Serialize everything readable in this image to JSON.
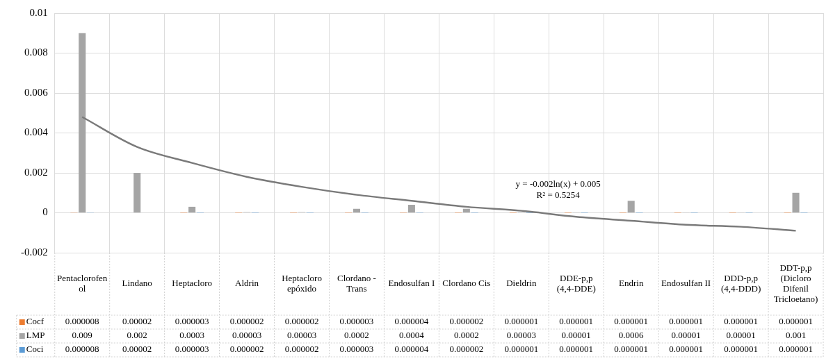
{
  "chart_data": {
    "type": "bar",
    "categories": [
      "Pentaclorofenol",
      "Lindano",
      "Heptacloro",
      "Aldrin",
      "Heptacloro epóxido",
      "Clordano - Trans",
      "Endosulfan I",
      "Clordano Cis",
      "Dieldrin",
      "DDE-p,p (4,4-DDE)",
      "Endrin",
      "Endosulfan II",
      "DDD-p,p (4,4-DDD)",
      "DDT-p,p (Dicloro Difenil Tricloetano)"
    ],
    "series": [
      {
        "name": "Cocf",
        "color": "#ed7d31",
        "values": [
          8e-06,
          2e-05,
          3e-06,
          2e-06,
          2e-06,
          3e-06,
          4e-06,
          2e-06,
          1e-06,
          1e-06,
          1e-06,
          1e-06,
          1e-06,
          1e-06
        ],
        "value_labels": [
          "0.000008",
          "0.00002",
          "0.000003",
          "0.000002",
          "0.000002",
          "0.000003",
          "0.000004",
          "0.000002",
          "0.000001",
          "0.000001",
          "0.000001",
          "0.000001",
          "0.000001",
          "0.000001"
        ]
      },
      {
        "name": "LMP",
        "color": "#a5a5a5",
        "values": [
          0.009,
          0.002,
          0.0003,
          3e-05,
          3e-05,
          0.0002,
          0.0004,
          0.0002,
          3e-05,
          1e-05,
          0.0006,
          1e-05,
          1e-05,
          0.001
        ],
        "value_labels": [
          "0.009",
          "0.002",
          "0.0003",
          "0.00003",
          "0.00003",
          "0.0002",
          "0.0004",
          "0.0002",
          "0.00003",
          "0.00001",
          "0.0006",
          "0.00001",
          "0.00001",
          "0.001"
        ]
      },
      {
        "name": "Coci",
        "color": "#5b9bd5",
        "values": [
          8e-06,
          2e-05,
          3e-06,
          2e-06,
          2e-06,
          3e-06,
          4e-06,
          2e-06,
          1e-06,
          1e-06,
          1e-06,
          1e-06,
          1e-06,
          1e-06
        ],
        "value_labels": [
          "0.000008",
          "0.00002",
          "0.000003",
          "0.000002",
          "0.000002",
          "0.000003",
          "0.000004",
          "0.000002",
          "0.000001",
          "0.000001",
          "0.000001",
          "0.000001",
          "0.000001",
          "0.000001"
        ]
      },
      {
        "type": "line",
        "color": "#7a7a7a",
        "values": [
          0.0048,
          0.0033,
          0.0025,
          0.0018,
          0.0013,
          0.0009,
          0.0006,
          0.0003,
          0.0001,
          -0.0002,
          -0.0004,
          -0.0006,
          -0.0007,
          -0.0009
        ]
      }
    ],
    "ylim": [
      -0.002,
      0.01
    ],
    "yticks": [
      -0.002,
      0,
      0.002,
      0.004,
      0.006,
      0.008,
      0.01
    ],
    "grid": true,
    "legend": "bottom",
    "marker": "none",
    "annotations": [
      "y = -0.002ln(x) + 0.005",
      "R² = 0.5254"
    ]
  }
}
